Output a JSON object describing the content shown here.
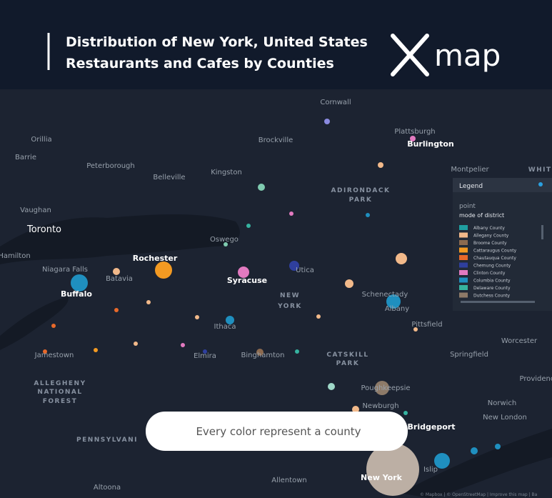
{
  "header": {
    "title_lines": [
      "Distribution of New York, United States",
      "Restaurants and Cafes by Counties"
    ],
    "logo": "map"
  },
  "map_labels": [
    "Cornwall",
    "Orillia",
    "Brockville",
    "Plattsburgh",
    "Burlington",
    "Barrie",
    "Peterborough",
    "Belleville",
    "Kingston",
    "Montpelier",
    "WHITE",
    "ADIRONDACK",
    "PARK",
    "Vaughan",
    "Toronto",
    "Oswego",
    "Hamilton",
    "Rochester",
    "Niagara Falls",
    "Batavia",
    "Syracuse",
    "Utica",
    "Buffalo",
    "NEW",
    "YORK",
    "Schenectady",
    "Albany",
    "Pittsfield",
    "Ithaca",
    "Worcester",
    "Jamestown",
    "Elmira",
    "Binghamton",
    "CATSKILL",
    "PARK",
    "Springfield",
    "ALLEGHENY",
    "NATIONAL",
    "FOREST",
    "Poughkeepsie",
    "Providence",
    "Newburgh",
    "Norwich",
    "New London",
    "Bridgeport",
    "PENNSYLVANI",
    "Islip",
    "New York",
    "Allentown",
    "Altoona"
  ],
  "legend": {
    "title": "Legend",
    "layer": "point",
    "field": "mode of district",
    "entries": [
      {
        "label": "Albany County",
        "color": "#1f9ea0"
      },
      {
        "label": "Allegany County",
        "color": "#f2b98a"
      },
      {
        "label": "Broome County",
        "color": "#8c6a4f"
      },
      {
        "label": "Cattaraugus County",
        "color": "#f39a22"
      },
      {
        "label": "Chautauqua County",
        "color": "#e8692a"
      },
      {
        "label": "Chemung County",
        "color": "#2f3f9e"
      },
      {
        "label": "Clinton County",
        "color": "#e27ac0"
      },
      {
        "label": "Columbia County",
        "color": "#1f8fbf"
      },
      {
        "label": "Delaware County",
        "color": "#36b3a0"
      },
      {
        "label": "Dutchess County",
        "color": "#8d7a68"
      }
    ]
  },
  "caption": "Every color represent a county",
  "attribution": "© Mapbox | © OpenStreetMap | Improve this map | Ba"
}
